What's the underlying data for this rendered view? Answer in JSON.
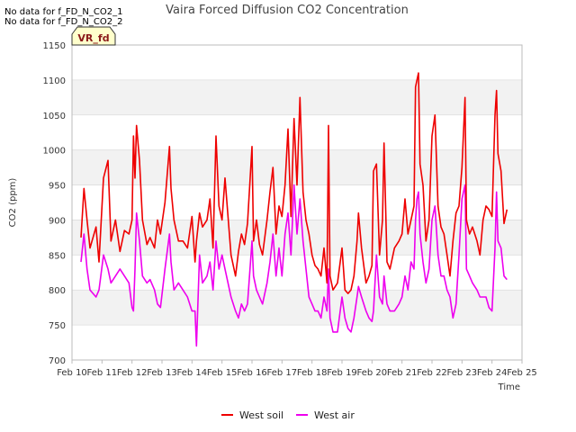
{
  "notices": [
    "No data for f_FD_N_CO2_1",
    "No data for f_FD_N_CO2_2"
  ],
  "badge": "VR_fd",
  "colors": {
    "west_soil": "#ee0000",
    "west_air": "#ee00ee",
    "band": "#f2f2f2",
    "grid": "#dddddd",
    "axis": "#bbbbbb"
  },
  "chart_data": {
    "type": "line",
    "title": "Vaira Forced Diffusion CO2 Concentration",
    "xlabel": "Time",
    "ylabel": "CO2 (ppm)",
    "xlim": [
      10,
      25
    ],
    "ylim": [
      700,
      1150
    ],
    "x_ticks": [
      10,
      11,
      12,
      13,
      14,
      15,
      16,
      17,
      18,
      19,
      20,
      21,
      22,
      23,
      24,
      25
    ],
    "x_tick_labels": [
      "Feb 10",
      "Feb 11",
      "Feb 12",
      "Feb 13",
      "Feb 14",
      "Feb 15",
      "Feb 16",
      "Feb 17",
      "Feb 18",
      "Feb 19",
      "Feb 20",
      "Feb 21",
      "Feb 22",
      "Feb 23",
      "Feb 24",
      "Feb 25"
    ],
    "y_ticks": [
      700,
      750,
      800,
      850,
      900,
      950,
      1000,
      1050,
      1100,
      1150
    ],
    "legend": {
      "position": "bottom-center",
      "entries": [
        "West soil",
        "West air"
      ]
    },
    "series": [
      {
        "name": "West soil",
        "x": [
          10.3,
          10.4,
          10.5,
          10.6,
          10.8,
          10.9,
          11.05,
          11.2,
          11.3,
          11.45,
          11.6,
          11.75,
          11.9,
          12.0,
          12.05,
          12.1,
          12.15,
          12.25,
          12.35,
          12.5,
          12.6,
          12.75,
          12.85,
          12.95,
          13.1,
          13.25,
          13.3,
          13.4,
          13.55,
          13.7,
          13.85,
          14.0,
          14.1,
          14.15,
          14.25,
          14.35,
          14.5,
          14.6,
          14.7,
          14.8,
          14.9,
          15.0,
          15.1,
          15.3,
          15.45,
          15.55,
          15.65,
          15.75,
          15.85,
          16.0,
          16.05,
          16.15,
          16.25,
          16.35,
          16.5,
          16.6,
          16.7,
          16.8,
          16.9,
          17.0,
          17.1,
          17.2,
          17.3,
          17.4,
          17.5,
          17.6,
          17.7,
          17.8,
          17.9,
          18.0,
          18.1,
          18.2,
          18.3,
          18.4,
          18.5,
          18.55,
          18.6,
          18.7,
          18.85,
          19.0,
          19.1,
          19.2,
          19.3,
          19.4,
          19.5,
          19.55,
          19.65,
          19.8,
          19.9,
          20.0,
          20.05,
          20.15,
          20.25,
          20.35,
          20.4,
          20.5,
          20.6,
          20.75,
          20.9,
          21.0,
          21.1,
          21.2,
          21.3,
          21.4,
          21.45,
          21.5,
          21.55,
          21.6,
          21.7,
          21.8,
          21.9,
          22.0,
          22.1,
          22.2,
          22.3,
          22.4,
          22.5,
          22.6,
          22.7,
          22.8,
          22.9,
          23.0,
          23.1,
          23.15,
          23.25,
          23.35,
          23.5,
          23.6,
          23.7,
          23.8,
          23.9,
          24.0,
          24.1,
          24.15,
          24.2,
          24.3,
          24.4,
          24.5
        ],
        "y": [
          875,
          945,
          900,
          860,
          890,
          840,
          960,
          985,
          870,
          900,
          855,
          885,
          880,
          900,
          1020,
          960,
          1035,
          985,
          900,
          865,
          875,
          860,
          900,
          880,
          925,
          1005,
          945,
          900,
          870,
          870,
          860,
          905,
          840,
          870,
          910,
          890,
          900,
          930,
          860,
          1020,
          920,
          900,
          960,
          850,
          820,
          855,
          880,
          865,
          895,
          1005,
          870,
          900,
          865,
          850,
          900,
          940,
          975,
          880,
          920,
          905,
          950,
          1030,
          905,
          1045,
          950,
          1075,
          940,
          900,
          880,
          850,
          835,
          830,
          820,
          860,
          810,
          1035,
          820,
          800,
          810,
          860,
          800,
          795,
          800,
          820,
          870,
          910,
          860,
          810,
          820,
          835,
          970,
          980,
          850,
          900,
          1010,
          840,
          830,
          860,
          870,
          880,
          930,
          880,
          900,
          920,
          1090,
          1100,
          1110,
          980,
          950,
          870,
          900,
          1020,
          1050,
          920,
          890,
          880,
          850,
          820,
          870,
          910,
          920,
          975,
          1075,
          900,
          880,
          890,
          870,
          850,
          900,
          920,
          915,
          905,
          1050,
          1085,
          995,
          970,
          895,
          915
        ]
      },
      {
        "name": "West air",
        "x": [
          10.3,
          10.4,
          10.5,
          10.6,
          10.8,
          10.9,
          11.05,
          11.2,
          11.3,
          11.45,
          11.6,
          11.75,
          11.9,
          12.0,
          12.05,
          12.1,
          12.15,
          12.25,
          12.35,
          12.5,
          12.6,
          12.75,
          12.85,
          12.95,
          13.1,
          13.25,
          13.3,
          13.4,
          13.55,
          13.7,
          13.85,
          14.0,
          14.1,
          14.15,
          14.25,
          14.35,
          14.5,
          14.6,
          14.7,
          14.8,
          14.9,
          15.0,
          15.1,
          15.3,
          15.45,
          15.55,
          15.65,
          15.75,
          15.85,
          16.0,
          16.05,
          16.15,
          16.25,
          16.35,
          16.5,
          16.6,
          16.7,
          16.8,
          16.9,
          17.0,
          17.1,
          17.2,
          17.3,
          17.4,
          17.5,
          17.6,
          17.7,
          17.8,
          17.9,
          18.0,
          18.1,
          18.2,
          18.3,
          18.4,
          18.5,
          18.55,
          18.6,
          18.7,
          18.85,
          19.0,
          19.1,
          19.2,
          19.3,
          19.4,
          19.5,
          19.55,
          19.65,
          19.8,
          19.9,
          20.0,
          20.05,
          20.15,
          20.25,
          20.35,
          20.4,
          20.5,
          20.6,
          20.75,
          20.9,
          21.0,
          21.1,
          21.2,
          21.3,
          21.4,
          21.45,
          21.5,
          21.55,
          21.6,
          21.7,
          21.8,
          21.9,
          22.0,
          22.1,
          22.2,
          22.3,
          22.4,
          22.5,
          22.6,
          22.7,
          22.8,
          22.9,
          23.0,
          23.1,
          23.15,
          23.25,
          23.35,
          23.5,
          23.6,
          23.7,
          23.8,
          23.9,
          24.0,
          24.1,
          24.15,
          24.2,
          24.3,
          24.4,
          24.5
        ],
        "y": [
          840,
          880,
          830,
          800,
          790,
          800,
          850,
          830,
          810,
          820,
          830,
          820,
          810,
          775,
          770,
          830,
          910,
          870,
          820,
          810,
          815,
          800,
          780,
          775,
          830,
          880,
          840,
          800,
          810,
          800,
          790,
          770,
          770,
          720,
          850,
          810,
          820,
          840,
          800,
          870,
          830,
          850,
          830,
          790,
          770,
          760,
          780,
          770,
          780,
          870,
          820,
          800,
          790,
          780,
          810,
          840,
          880,
          820,
          860,
          820,
          880,
          910,
          850,
          950,
          880,
          930,
          870,
          830,
          790,
          780,
          770,
          770,
          760,
          790,
          770,
          830,
          760,
          740,
          740,
          790,
          760,
          745,
          740,
          760,
          790,
          805,
          790,
          770,
          760,
          755,
          770,
          850,
          790,
          780,
          820,
          780,
          770,
          770,
          780,
          790,
          820,
          800,
          840,
          830,
          900,
          930,
          940,
          880,
          840,
          810,
          830,
          900,
          920,
          850,
          820,
          820,
          800,
          790,
          760,
          780,
          850,
          930,
          950,
          830,
          820,
          810,
          800,
          790,
          790,
          790,
          775,
          770,
          860,
          940,
          870,
          860,
          820,
          815
        ]
      }
    ]
  }
}
